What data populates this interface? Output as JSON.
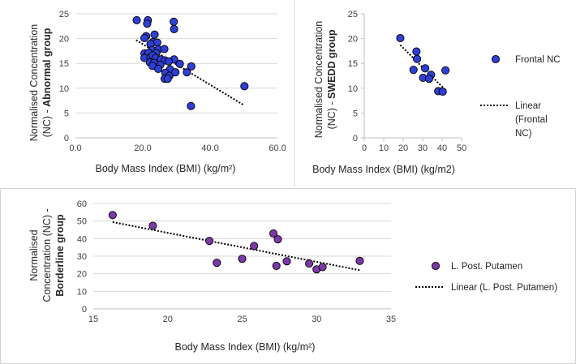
{
  "chart_data": [
    {
      "type": "scatter",
      "id": "abnormal",
      "title": "",
      "xlabel": "Body Mass Index (BMI) (kg/m²)",
      "ylabel": {
        "line1": "Normalised Concentration",
        "line2_prefix": "(NC) - ",
        "line2_bold": "Abnormal group"
      },
      "xlim": [
        0,
        60
      ],
      "ylim": [
        0,
        25
      ],
      "x_ticks": [
        0,
        20,
        40,
        60
      ],
      "x_tick_labels": [
        "0.0",
        "20.0",
        "40.0",
        "60.0"
      ],
      "y_ticks": [
        0,
        5,
        10,
        15,
        20,
        25
      ],
      "y_tick_labels": [
        "0",
        "5",
        "10",
        "15",
        "20",
        "25"
      ],
      "gridlines": true,
      "marker_color": "#2e3fd6",
      "trendline": {
        "type": "linear",
        "x": [
          18,
          50
        ],
        "y": [
          19.7,
          6.6
        ]
      },
      "points": [
        [
          18.2,
          23.7
        ],
        [
          21.5,
          23.7
        ],
        [
          21.3,
          23.0
        ],
        [
          29.2,
          23.4
        ],
        [
          29.3,
          21.9
        ],
        [
          21.0,
          20.5
        ],
        [
          20.5,
          20.1
        ],
        [
          23.5,
          20.8
        ],
        [
          23.0,
          19.3
        ],
        [
          24.3,
          19.2
        ],
        [
          22.3,
          18.9
        ],
        [
          22.8,
          17.7
        ],
        [
          24.6,
          17.8
        ],
        [
          26.4,
          17.9
        ],
        [
          20.5,
          17.0
        ],
        [
          21.7,
          17.1
        ],
        [
          24.0,
          17.1
        ],
        [
          20.5,
          16.1
        ],
        [
          22.3,
          16.2
        ],
        [
          23.0,
          16.6
        ],
        [
          23.8,
          16.1
        ],
        [
          25.4,
          15.8
        ],
        [
          29.3,
          15.8
        ],
        [
          22.1,
          15.2
        ],
        [
          23.3,
          15.1
        ],
        [
          26.6,
          15.6
        ],
        [
          27.7,
          15.4
        ],
        [
          31.0,
          14.9
        ],
        [
          22.9,
          14.5
        ],
        [
          25.2,
          14.7
        ],
        [
          24.6,
          13.9
        ],
        [
          28.1,
          13.8
        ],
        [
          34.4,
          14.4
        ],
        [
          26.7,
          13.1
        ],
        [
          27.9,
          12.5
        ],
        [
          33.1,
          13.2
        ],
        [
          29.7,
          13.2
        ],
        [
          26.5,
          11.9
        ],
        [
          27.4,
          11.9
        ],
        [
          50.2,
          10.4
        ],
        [
          34.3,
          6.4
        ]
      ],
      "legend": []
    },
    {
      "type": "scatter",
      "id": "swedd",
      "title": "",
      "xlabel": "Body Mass Index (BMI) (kg/m2)",
      "ylabel": {
        "line1": "Normalised Concentration",
        "line2_prefix": "(NC) - ",
        "line2_bold": "SWEDD group"
      },
      "xlim": [
        0,
        50
      ],
      "ylim": [
        0,
        25
      ],
      "x_ticks": [
        0,
        10,
        20,
        30,
        40,
        50
      ],
      "x_tick_labels": [
        "0",
        "10",
        "20",
        "30",
        "40",
        "50"
      ],
      "y_ticks": [
        0,
        5,
        10,
        15,
        20,
        25
      ],
      "y_tick_labels": [
        "0",
        "5",
        "10",
        "15",
        "20",
        "25"
      ],
      "gridlines": false,
      "marker_color": "#2e3fd6",
      "trendline": {
        "type": "linear",
        "x": [
          18.5,
          41.5
        ],
        "y": [
          18.7,
          9.7
        ]
      },
      "points": [
        [
          18.5,
          20.1
        ],
        [
          26.8,
          17.4
        ],
        [
          27.1,
          15.9
        ],
        [
          31.3,
          14.0
        ],
        [
          41.7,
          13.6
        ],
        [
          25.3,
          13.7
        ],
        [
          34.3,
          12.7
        ],
        [
          30.2,
          12.1
        ],
        [
          33.3,
          11.9
        ],
        [
          38.0,
          9.4
        ],
        [
          40.3,
          9.3
        ]
      ],
      "legend": [
        {
          "label": "Frontal NC",
          "kind": "marker"
        },
        {
          "label": "Linear (Frontal NC)",
          "kind": "line",
          "lines": [
            "Linear",
            "(Frontal",
            "NC)"
          ]
        }
      ]
    },
    {
      "type": "scatter",
      "id": "borderline",
      "title": "",
      "xlabel": "Body Mass Index (BMI) (kg/m²)",
      "ylabel": {
        "line1": "Normalised",
        "line2": "Concentration (NC) -",
        "line3_bold": "Borderline group"
      },
      "xlim": [
        15,
        35
      ],
      "ylim": [
        0,
        60
      ],
      "x_ticks": [
        15,
        20,
        25,
        30,
        35
      ],
      "x_tick_labels": [
        "15",
        "20",
        "25",
        "30",
        "35"
      ],
      "y_ticks": [
        0,
        10,
        20,
        30,
        40,
        50,
        60
      ],
      "y_tick_labels": [
        "0",
        "10",
        "20",
        "30",
        "40",
        "50",
        "60"
      ],
      "gridlines": true,
      "marker_color": "#7a38a8",
      "trendline": {
        "type": "linear",
        "x": [
          16.3,
          32.9
        ],
        "y": [
          49.4,
          22.0
        ]
      },
      "points": [
        [
          16.3,
          53.4
        ],
        [
          19.0,
          47.3
        ],
        [
          22.8,
          38.7
        ],
        [
          23.3,
          26.2
        ],
        [
          25.0,
          28.5
        ],
        [
          25.8,
          35.8
        ],
        [
          27.1,
          42.9
        ],
        [
          27.4,
          39.6
        ],
        [
          27.3,
          24.5
        ],
        [
          28.0,
          27.1
        ],
        [
          29.5,
          25.8
        ],
        [
          30.0,
          22.5
        ],
        [
          30.4,
          23.8
        ],
        [
          32.9,
          27.3
        ]
      ],
      "legend": [
        {
          "label": "L. Post. Putamen",
          "kind": "marker"
        },
        {
          "label": "Linear (L. Post. Putamen)",
          "kind": "line"
        }
      ]
    }
  ]
}
